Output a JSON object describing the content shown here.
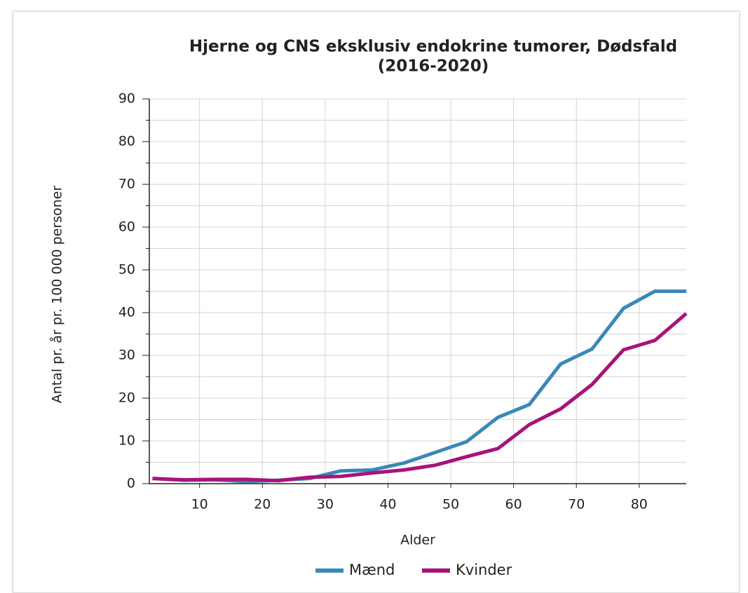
{
  "chart_data": {
    "type": "line",
    "title": "Hjerne og CNS eksklusiv endokrine tumorer, Dødsfald",
    "subtitle": "(2016-2020)",
    "x_label": "Alder",
    "y_label": "Antal pr. år pr. 100 000 personer",
    "x": [
      2.5,
      7.5,
      12.5,
      17.5,
      22.5,
      27.5,
      32.5,
      37.5,
      42.5,
      47.5,
      52.5,
      57.5,
      62.5,
      67.5,
      72.5,
      77.5,
      82.5,
      87.5
    ],
    "series": [
      {
        "name": "Mænd",
        "color": "#3a88b9",
        "values": [
          1.2,
          0.8,
          0.9,
          0.5,
          0.8,
          1.2,
          3.0,
          3.2,
          4.8,
          7.3,
          9.8,
          15.5,
          18.5,
          28,
          31.5,
          41,
          45,
          45
        ]
      },
      {
        "name": "Kvinder",
        "color": "#a8137a",
        "values": [
          1.2,
          0.9,
          1.0,
          1.0,
          0.7,
          1.5,
          1.7,
          2.5,
          3.2,
          4.3,
          6.3,
          8.2,
          13.8,
          17.5,
          23.2,
          31.3,
          33.5,
          39.8
        ]
      }
    ],
    "xlim": [
      2,
      87.5
    ],
    "xticks": [
      10,
      20,
      30,
      40,
      50,
      60,
      70,
      80
    ],
    "ylim": [
      0,
      90
    ],
    "yticks": [
      0,
      10,
      20,
      30,
      40,
      50,
      60,
      70,
      80,
      90
    ],
    "grid": true,
    "legend": "bottom"
  }
}
